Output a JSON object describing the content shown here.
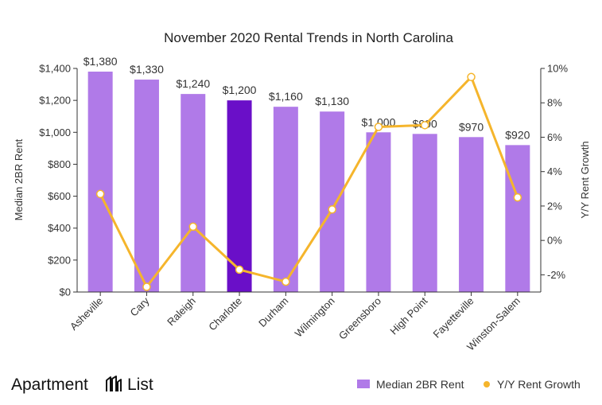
{
  "chart_data": {
    "type": "bar",
    "title": "November 2020 Rental Trends in North Carolina",
    "categories": [
      "Asheville",
      "Cary",
      "Raleigh",
      "Charlotte",
      "Durham",
      "Wilmington",
      "Greensboro",
      "High Point",
      "Fayetteville",
      "Winston-Salem"
    ],
    "bar_labels": [
      "$1,380",
      "$1,330",
      "$1,240",
      "$1,200",
      "$1,160",
      "$1,130",
      "$1,000",
      "$990",
      "$970",
      "$920"
    ],
    "highlight_category": "Charlotte",
    "series": [
      {
        "name": "Median 2BR Rent",
        "type": "bar",
        "axis": "left",
        "values": [
          1380,
          1330,
          1240,
          1200,
          1160,
          1130,
          1000,
          990,
          970,
          920
        ],
        "color": "#b07ae8",
        "highlight_color": "#6a0fc8"
      },
      {
        "name": "Y/Y Rent Growth",
        "type": "line",
        "axis": "right",
        "values": [
          2.7,
          -2.7,
          0.8,
          -1.7,
          -2.4,
          1.8,
          6.6,
          6.7,
          9.5,
          2.5
        ],
        "color": "#f5b52c"
      }
    ],
    "ylabel": "Median 2BR Rent",
    "ylabel_right": "Y/Y Rent Growth",
    "ylim": [
      0,
      1400
    ],
    "ylim_right": [
      -3,
      10
    ],
    "yticks": [
      0,
      200,
      400,
      600,
      800,
      1000,
      1200,
      1400
    ],
    "ytick_labels": [
      "$0",
      "$200",
      "$400",
      "$600",
      "$800",
      "$1,000",
      "$1,200",
      "$1,400"
    ],
    "yticks_right": [
      -2,
      0,
      2,
      4,
      6,
      8,
      10
    ],
    "ytick_labels_right": [
      "-2%",
      "0%",
      "2%",
      "4%",
      "6%",
      "8%",
      "10%"
    ],
    "grid": false,
    "legend_position": "bottom-right"
  },
  "branding": {
    "logo_left": "Apartment",
    "logo_right": "List"
  }
}
